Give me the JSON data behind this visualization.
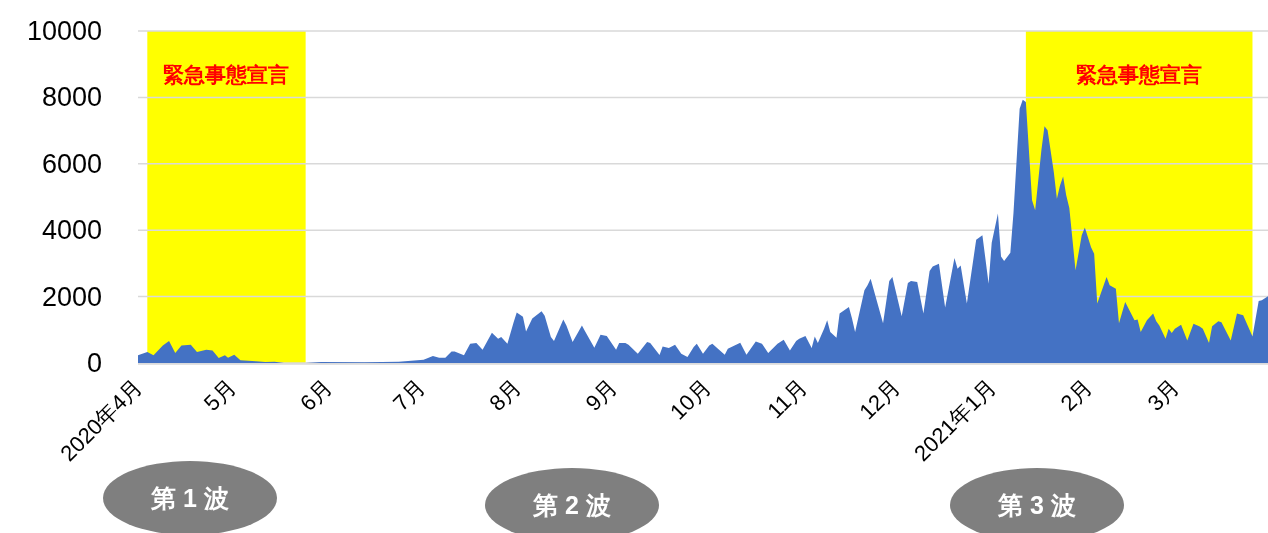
{
  "chart_data": {
    "type": "area",
    "color": "#4472c4",
    "grid": "y",
    "ylim": [
      0,
      10000
    ],
    "yticks": [
      0,
      2000,
      4000,
      6000,
      8000,
      10000
    ],
    "xlim": [
      "2020-04-01",
      "2021-03-31"
    ],
    "xticks": [
      {
        "value": "2020-04-01",
        "label": "2020年4月"
      },
      {
        "value": "2020-05-01",
        "label": "5月"
      },
      {
        "value": "2020-06-01",
        "label": "6月"
      },
      {
        "value": "2020-07-01",
        "label": "7月"
      },
      {
        "value": "2020-08-01",
        "label": "8月"
      },
      {
        "value": "2020-09-01",
        "label": "9月"
      },
      {
        "value": "2020-10-01",
        "label": "10月"
      },
      {
        "value": "2020-11-01",
        "label": "11月"
      },
      {
        "value": "2020-12-01",
        "label": "12月"
      },
      {
        "value": "2021-01-01",
        "label": "2021年1月"
      },
      {
        "value": "2021-02-01",
        "label": "2月"
      },
      {
        "value": "2021-03-01",
        "label": "3月"
      }
    ],
    "bands": [
      {
        "axis": "x",
        "from": "2020-04-04",
        "to": "2020-05-25",
        "label": "緊急事態宣言",
        "color": "#ffff00"
      },
      {
        "axis": "x",
        "from": "2021-01-12",
        "to": "2021-03-26",
        "label": "緊急事態宣言",
        "color": "#ffff00"
      }
    ],
    "annotations": [
      "第 1 波",
      "第 2 波",
      "第 3 波"
    ],
    "x": [
      "2020-04-01",
      "2020-04-04",
      "2020-04-06",
      "2020-04-09",
      "2020-04-11",
      "2020-04-13",
      "2020-04-15",
      "2020-04-18",
      "2020-04-20",
      "2020-04-23",
      "2020-04-25",
      "2020-04-27",
      "2020-04-29",
      "2020-04-30",
      "2020-05-02",
      "2020-05-04",
      "2020-05-09",
      "2020-05-12",
      "2020-05-15",
      "2020-05-18",
      "2020-05-25",
      "2020-05-30",
      "2020-06-13",
      "2020-06-24",
      "2020-07-02",
      "2020-07-05",
      "2020-07-07",
      "2020-07-09",
      "2020-07-11",
      "2020-07-12",
      "2020-07-15",
      "2020-07-17",
      "2020-07-19",
      "2020-07-21",
      "2020-07-24",
      "2020-07-26",
      "2020-07-27",
      "2020-07-29",
      "2020-07-31",
      "2020-08-01",
      "2020-08-03",
      "2020-08-04",
      "2020-08-06",
      "2020-08-09",
      "2020-08-10",
      "2020-08-12",
      "2020-08-13",
      "2020-08-16",
      "2020-08-17",
      "2020-08-19",
      "2020-08-22",
      "2020-08-23",
      "2020-08-26",
      "2020-08-28",
      "2020-08-30",
      "2020-09-02",
      "2020-09-03",
      "2020-09-05",
      "2020-09-06",
      "2020-09-09",
      "2020-09-12",
      "2020-09-13",
      "2020-09-16",
      "2020-09-17",
      "2020-09-19",
      "2020-09-21",
      "2020-09-23",
      "2020-09-25",
      "2020-09-27",
      "2020-09-28",
      "2020-09-30",
      "2020-10-02",
      "2020-10-03",
      "2020-10-07",
      "2020-10-08",
      "2020-10-12",
      "2020-10-14",
      "2020-10-17",
      "2020-10-19",
      "2020-10-21",
      "2020-10-24",
      "2020-10-26",
      "2020-10-28",
      "2020-10-30",
      "2020-10-31",
      "2020-11-02",
      "2020-11-04",
      "2020-11-05",
      "2020-11-06",
      "2020-11-08",
      "2020-11-09",
      "2020-11-10",
      "2020-11-12",
      "2020-11-13",
      "2020-11-16",
      "2020-11-17",
      "2020-11-18",
      "2020-11-21",
      "2020-11-22",
      "2020-11-23",
      "2020-11-27",
      "2020-11-29",
      "2020-11-30",
      "2020-12-03",
      "2020-12-05",
      "2020-12-06",
      "2020-12-08",
      "2020-12-10",
      "2020-12-12",
      "2020-12-13",
      "2020-12-15",
      "2020-12-17",
      "2020-12-20",
      "2020-12-21",
      "2020-12-22",
      "2020-12-24",
      "2020-12-27",
      "2020-12-29",
      "2020-12-31",
      "2021-01-01",
      "2021-01-03",
      "2021-01-04",
      "2021-01-05",
      "2021-01-07",
      "2021-01-08",
      "2021-01-10",
      "2021-01-11",
      "2021-01-12",
      "2021-01-14",
      "2021-01-15",
      "2021-01-17",
      "2021-01-18",
      "2021-01-19",
      "2021-01-21",
      "2021-01-22",
      "2021-01-23",
      "2021-01-24",
      "2021-01-25",
      "2021-01-26",
      "2021-01-28",
      "2021-01-30",
      "2021-01-31",
      "2021-02-02",
      "2021-02-03",
      "2021-02-04",
      "2021-02-07",
      "2021-02-08",
      "2021-02-10",
      "2021-02-11",
      "2021-02-13",
      "2021-02-16",
      "2021-02-17",
      "2021-02-18",
      "2021-02-20",
      "2021-02-22",
      "2021-02-23",
      "2021-02-24",
      "2021-02-26",
      "2021-02-27",
      "2021-02-28",
      "2021-03-01",
      "2021-03-03",
      "2021-03-05",
      "2021-03-07",
      "2021-03-09",
      "2021-03-10",
      "2021-03-12",
      "2021-03-13",
      "2021-03-15",
      "2021-03-16",
      "2021-03-19",
      "2021-03-21",
      "2021-03-23",
      "2021-03-26",
      "2021-03-28",
      "2021-03-29",
      "2021-03-31"
    ],
    "values": [
      230,
      330,
      230,
      530,
      660,
      300,
      530,
      550,
      330,
      400,
      380,
      150,
      230,
      160,
      250,
      80,
      50,
      30,
      40,
      0,
      0,
      30,
      20,
      40,
      100,
      210,
      160,
      160,
      350,
      350,
      230,
      580,
      600,
      400,
      910,
      730,
      780,
      580,
      1230,
      1520,
      1390,
      950,
      1340,
      1560,
      1420,
      780,
      660,
      1310,
      1130,
      630,
      1130,
      960,
      460,
      850,
      810,
      400,
      600,
      600,
      550,
      280,
      630,
      600,
      240,
      500,
      450,
      550,
      280,
      180,
      480,
      580,
      280,
      530,
      580,
      250,
      430,
      610,
      250,
      650,
      580,
      300,
      580,
      700,
      380,
      660,
      730,
      810,
      450,
      800,
      600,
      1030,
      1290,
      930,
      760,
      1490,
      1690,
      1340,
      930,
      2190,
      2340,
      2540,
      1200,
      2470,
      2590,
      1410,
      2410,
      2470,
      2440,
      1490,
      2770,
      2910,
      2990,
      1670,
      3160,
      2840,
      2940,
      1790,
      3710,
      3850,
      2390,
      3620,
      4500,
      3210,
      3070,
      3320,
      4500,
      7660,
      7930,
      7860,
      4900,
      4600,
      6410,
      7130,
      7010,
      5750,
      4950,
      5350,
      5620,
      5050,
      4670,
      2790,
      3850,
      4080,
      3490,
      3290,
      1790,
      2590,
      2340,
      2240,
      1200,
      1840,
      1290,
      1310,
      930,
      1290,
      1490,
      1260,
      1130,
      730,
      1030,
      900,
      1030,
      1150,
      680,
      1180,
      1100,
      1030,
      600,
      1110,
      1260,
      1230,
      680,
      1490,
      1440,
      800,
      1870,
      1890,
      2010
    ]
  }
}
